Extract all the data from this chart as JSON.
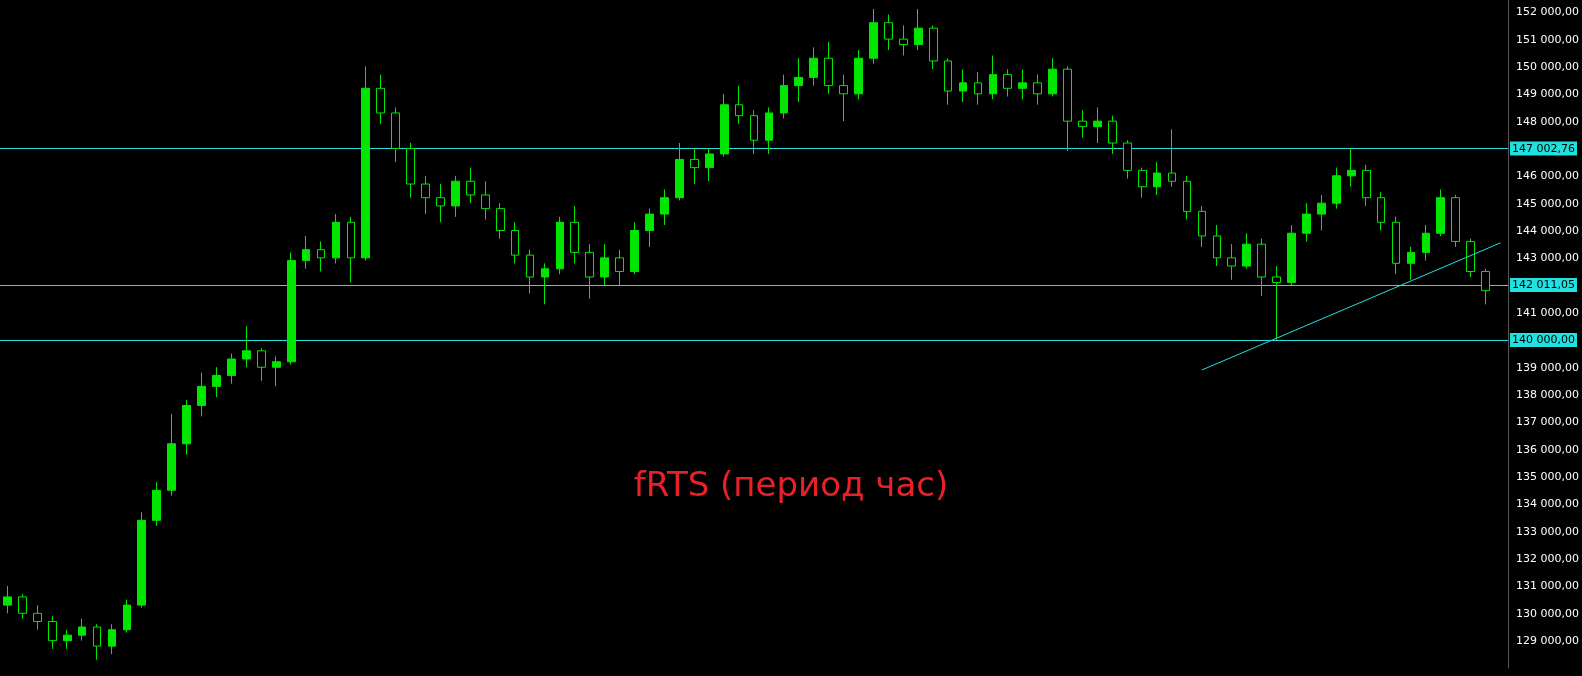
{
  "chart_data": {
    "type": "candlestick",
    "title": "fRTS (период час)",
    "color": "#00e600",
    "categories": [
      null,
      null,
      null,
      null,
      null,
      null,
      null,
      null,
      null,
      null,
      null,
      null,
      null,
      null,
      null,
      null,
      null,
      null,
      null,
      null,
      null,
      null,
      null,
      null,
      null,
      null,
      null,
      null,
      null,
      null,
      null,
      null,
      null,
      null,
      null,
      null,
      null,
      null,
      null,
      null,
      null,
      null,
      null,
      null,
      null,
      null,
      null,
      null,
      null,
      null,
      null,
      null,
      null,
      null,
      null,
      null,
      null,
      null,
      null,
      null,
      null,
      null,
      null,
      null,
      null,
      null,
      null,
      null,
      null,
      null,
      null,
      null,
      null,
      null,
      null,
      null,
      null,
      null,
      null,
      null,
      null,
      null,
      null,
      null,
      null,
      null,
      null,
      null,
      null,
      null,
      null,
      null,
      null,
      null,
      null,
      null,
      null,
      null,
      null,
      null,
      null
    ],
    "ohlc": [
      [
        130300,
        131000,
        130000,
        130600
      ],
      [
        130600,
        130700,
        129800,
        130000
      ],
      [
        130000,
        130300,
        129400,
        129700
      ],
      [
        129700,
        129900,
        128700,
        129000
      ],
      [
        129000,
        129400,
        128700,
        129200
      ],
      [
        129200,
        129800,
        129000,
        129500
      ],
      [
        129500,
        129600,
        128300,
        128800
      ],
      [
        128800,
        129600,
        128500,
        129400
      ],
      [
        129400,
        130500,
        129300,
        130300
      ],
      [
        130300,
        133700,
        130200,
        133400
      ],
      [
        133400,
        134800,
        133200,
        134500
      ],
      [
        134500,
        137300,
        134300,
        136200
      ],
      [
        136200,
        137800,
        135800,
        137600
      ],
      [
        137600,
        138800,
        137200,
        138300
      ],
      [
        138300,
        139000,
        137900,
        138700
      ],
      [
        138700,
        139500,
        138400,
        139300
      ],
      [
        139300,
        140500,
        139000,
        139600
      ],
      [
        139600,
        139700,
        138500,
        139000
      ],
      [
        139000,
        139400,
        138300,
        139200
      ],
      [
        139200,
        143200,
        139100,
        142900
      ],
      [
        142900,
        143800,
        142600,
        143300
      ],
      [
        143300,
        143600,
        142500,
        143000
      ],
      [
        143000,
        144600,
        142800,
        144300
      ],
      [
        144300,
        144500,
        142100,
        143000
      ],
      [
        143000,
        150000,
        142900,
        149200
      ],
      [
        149200,
        149700,
        147900,
        148300
      ],
      [
        148300,
        148500,
        146500,
        147000
      ],
      [
        147000,
        147200,
        145200,
        145700
      ],
      [
        145700,
        146000,
        144600,
        145200
      ],
      [
        145200,
        145700,
        144300,
        144900
      ],
      [
        144900,
        146000,
        144500,
        145800
      ],
      [
        145800,
        146300,
        145000,
        145300
      ],
      [
        145300,
        145800,
        144400,
        144800
      ],
      [
        144800,
        145000,
        143700,
        144000
      ],
      [
        144000,
        144300,
        142800,
        143100
      ],
      [
        143100,
        143300,
        141700,
        142300
      ],
      [
        142300,
        142800,
        141300,
        142600
      ],
      [
        142600,
        144500,
        142400,
        144300
      ],
      [
        144300,
        144900,
        142800,
        143200
      ],
      [
        143200,
        143500,
        141500,
        142300
      ],
      [
        142300,
        143500,
        142000,
        143000
      ],
      [
        143000,
        143300,
        142000,
        142500
      ],
      [
        142500,
        144300,
        142400,
        144000
      ],
      [
        144000,
        144800,
        143400,
        144600
      ],
      [
        144600,
        145500,
        144200,
        145200
      ],
      [
        145200,
        147200,
        145100,
        146600
      ],
      [
        146600,
        147000,
        145700,
        146300
      ],
      [
        146300,
        147000,
        145800,
        146800
      ],
      [
        146800,
        149000,
        146700,
        148600
      ],
      [
        148600,
        149300,
        147900,
        148200
      ],
      [
        148200,
        148400,
        146800,
        147300
      ],
      [
        147300,
        148500,
        146800,
        148300
      ],
      [
        148300,
        149700,
        148100,
        149300
      ],
      [
        149300,
        150300,
        148700,
        149600
      ],
      [
        149600,
        150700,
        149300,
        150300
      ],
      [
        150300,
        150900,
        149000,
        149300
      ],
      [
        149300,
        149700,
        148000,
        149000
      ],
      [
        149000,
        150600,
        148800,
        150300
      ],
      [
        150300,
        152100,
        150100,
        151600
      ],
      [
        151600,
        151900,
        150600,
        151000
      ],
      [
        151000,
        151500,
        150400,
        150800
      ],
      [
        150800,
        152100,
        150600,
        151400
      ],
      [
        151400,
        151500,
        149900,
        150200
      ],
      [
        150200,
        150300,
        148600,
        149100
      ],
      [
        149100,
        149900,
        148700,
        149400
      ],
      [
        149400,
        149800,
        148600,
        149000
      ],
      [
        149000,
        150400,
        148800,
        149700
      ],
      [
        149700,
        149900,
        148900,
        149200
      ],
      [
        149200,
        149900,
        148800,
        149400
      ],
      [
        149400,
        149700,
        148600,
        149000
      ],
      [
        149000,
        150300,
        148900,
        149900
      ],
      [
        149900,
        150000,
        146900,
        148000
      ],
      [
        148000,
        148400,
        147400,
        147800
      ],
      [
        147800,
        148500,
        147200,
        148000
      ],
      [
        148000,
        148200,
        146800,
        147200
      ],
      [
        147200,
        147300,
        145900,
        146200
      ],
      [
        146200,
        146300,
        145200,
        145600
      ],
      [
        145600,
        146500,
        145300,
        146100
      ],
      [
        146100,
        147700,
        145600,
        145800
      ],
      [
        145800,
        146000,
        144400,
        144700
      ],
      [
        144700,
        144900,
        143400,
        143800
      ],
      [
        143800,
        144200,
        142700,
        143000
      ],
      [
        143000,
        143500,
        142200,
        142700
      ],
      [
        142700,
        143900,
        142600,
        143500
      ],
      [
        143500,
        143700,
        141600,
        142300
      ],
      [
        142300,
        142700,
        140000,
        142100
      ],
      [
        142100,
        144200,
        142000,
        143900
      ],
      [
        143900,
        145000,
        143600,
        144600
      ],
      [
        144600,
        145300,
        144000,
        145000
      ],
      [
        145000,
        146300,
        144800,
        146000
      ],
      [
        146000,
        147000,
        145600,
        146200
      ],
      [
        146200,
        146400,
        144900,
        145200
      ],
      [
        145200,
        145400,
        144000,
        144300
      ],
      [
        144300,
        144500,
        142400,
        142800
      ],
      [
        142800,
        143400,
        142200,
        143200
      ],
      [
        143200,
        144200,
        142900,
        143900
      ],
      [
        143900,
        145500,
        143800,
        145200
      ],
      [
        145200,
        145300,
        143400,
        143600
      ],
      [
        143600,
        143700,
        142300,
        142500
      ],
      [
        142500,
        142600,
        141300,
        141800
      ],
      null
    ],
    "series": [
      {
        "type": "line",
        "color": "#20e0e0",
        "values": [
          null,
          null,
          null,
          null,
          null,
          null,
          null,
          null,
          null,
          null,
          null,
          null,
          null,
          null,
          null,
          null,
          null,
          null,
          null,
          null,
          null,
          null,
          null,
          null,
          null,
          null,
          null,
          null,
          null,
          null,
          null,
          null,
          null,
          null,
          null,
          null,
          null,
          null,
          null,
          null,
          null,
          null,
          null,
          null,
          null,
          null,
          null,
          null,
          null,
          null,
          null,
          null,
          null,
          null,
          null,
          null,
          null,
          null,
          null,
          null,
          null,
          null,
          null,
          null,
          null,
          null,
          null,
          null,
          null,
          null,
          null,
          null,
          null,
          null,
          null,
          null,
          null,
          null,
          null,
          null,
          138900,
          null,
          null,
          null,
          null,
          null,
          null,
          null,
          null,
          null,
          null,
          null,
          null,
          null,
          null,
          null,
          null,
          null,
          null,
          null,
          143550
        ]
      }
    ],
    "ylim": [
      128000,
      152430
    ],
    "yticks": [
      {
        "value": 129000,
        "label": "129 000,00"
      },
      {
        "value": 130000,
        "label": "130 000,00"
      },
      {
        "value": 131000,
        "label": "131 000,00"
      },
      {
        "value": 132000,
        "label": "132 000,00"
      },
      {
        "value": 133000,
        "label": "133 000,00"
      },
      {
        "value": 134000,
        "label": "134 000,00"
      },
      {
        "value": 135000,
        "label": "135 000,00"
      },
      {
        "value": 136000,
        "label": "136 000,00"
      },
      {
        "value": 137000,
        "label": "137 000,00"
      },
      {
        "value": 138000,
        "label": "138 000,00"
      },
      {
        "value": 139000,
        "label": "139 000,00"
      },
      {
        "value": 141000,
        "label": "141 000,00"
      },
      {
        "value": 143000,
        "label": "143 000,00"
      },
      {
        "value": 144000,
        "label": "144 000,00"
      },
      {
        "value": 145000,
        "label": "145 000,00"
      },
      {
        "value": 146000,
        "label": "146 000,00"
      },
      {
        "value": 148000,
        "label": "148 000,00"
      },
      {
        "value": 149000,
        "label": "149 000,00"
      },
      {
        "value": 150000,
        "label": "150 000,00"
      },
      {
        "value": 151000,
        "label": "151 000,00"
      },
      {
        "value": 152000,
        "label": "152 000,00"
      }
    ],
    "ref_lines": [
      {
        "axis": "y",
        "value": 147002.76,
        "label": "147 002,76",
        "color": "#20e0e0"
      },
      {
        "axis": "y",
        "value": 142011.05,
        "label": "142 011,05",
        "color": "#20e0e0"
      },
      {
        "axis": "y",
        "value": 140000,
        "label": "140 000,00",
        "color": "#20e0e0"
      }
    ],
    "grid": false
  }
}
